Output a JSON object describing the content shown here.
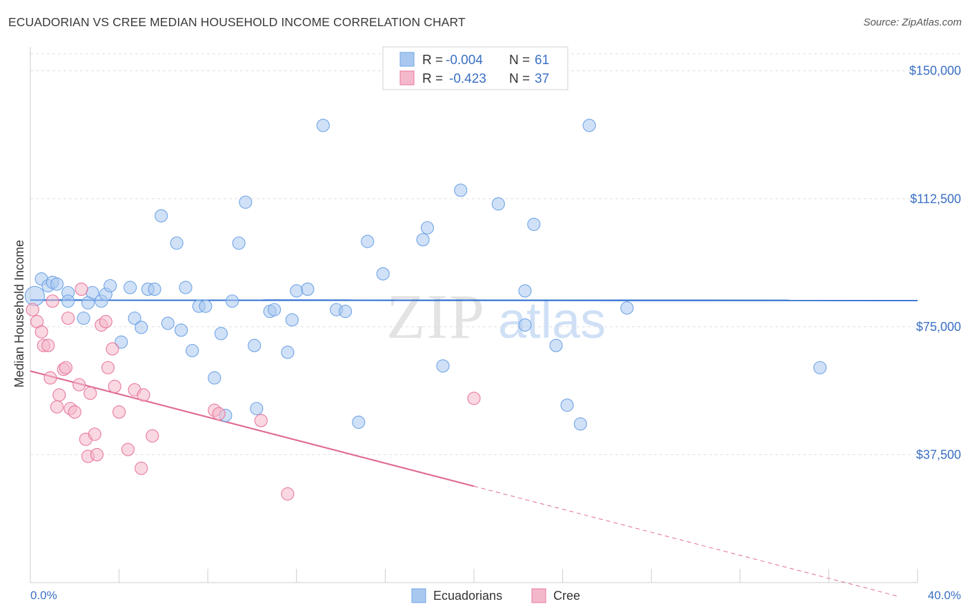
{
  "header": {
    "title": "ECUADORIAN VS CREE MEDIAN HOUSEHOLD INCOME CORRELATION CHART",
    "source": "Source: ZipAtlas.com"
  },
  "watermark": {
    "zip": "ZIP",
    "atlas": "atlas"
  },
  "legend": {
    "rows": [
      {
        "r_label": "R =",
        "r_value": "-0.004",
        "n_label": "N =",
        "n_value": "61",
        "color": "#a9c8f0"
      },
      {
        "r_label": "R =",
        "r_value": "-0.423",
        "n_label": "N =",
        "n_value": "37",
        "color": "#f4b8cb"
      }
    ]
  },
  "bottom_legend": {
    "ecuadorians": "Ecuadorians",
    "cree": "Cree"
  },
  "chart_data": {
    "type": "scatter",
    "title": "ECUADORIAN VS CREE MEDIAN HOUSEHOLD INCOME CORRELATION CHART",
    "xlabel": "",
    "ylabel": "Median Household Income",
    "xlim": [
      0,
      40
    ],
    "ylim": [
      0,
      155000
    ],
    "x_tick_labels": [
      "0.0%",
      "40.0%"
    ],
    "y_ticks": [
      37500,
      75000,
      112500,
      150000
    ],
    "y_tick_labels": [
      "$37,500",
      "$75,000",
      "$112,500",
      "$150,000"
    ],
    "grid": true,
    "legend_position": "top-center",
    "series": [
      {
        "name": "Ecuadorians",
        "color": "#6ea3e6",
        "fill": "#a9c8f0",
        "trend": {
          "x": [
            0,
            40
          ],
          "y": [
            82800,
            82700
          ],
          "dashed_from": null
        },
        "points": [
          [
            0.2,
            84000
          ],
          [
            0.5,
            89000
          ],
          [
            0.8,
            87000
          ],
          [
            1.0,
            88000
          ],
          [
            1.2,
            87500
          ],
          [
            1.7,
            85000
          ],
          [
            1.7,
            82500
          ],
          [
            2.4,
            77500
          ],
          [
            2.6,
            82000
          ],
          [
            2.8,
            85000
          ],
          [
            3.2,
            82500
          ],
          [
            3.4,
            84500
          ],
          [
            3.6,
            87000
          ],
          [
            4.1,
            70500
          ],
          [
            4.5,
            86500
          ],
          [
            4.7,
            77500
          ],
          [
            5.0,
            74800
          ],
          [
            5.3,
            86000
          ],
          [
            5.6,
            86000
          ],
          [
            5.9,
            107500
          ],
          [
            6.2,
            76000
          ],
          [
            6.6,
            99500
          ],
          [
            6.8,
            74000
          ],
          [
            7.0,
            86500
          ],
          [
            7.3,
            68000
          ],
          [
            7.6,
            81000
          ],
          [
            7.9,
            81000
          ],
          [
            8.3,
            60000
          ],
          [
            8.6,
            73000
          ],
          [
            8.8,
            49000
          ],
          [
            9.1,
            82500
          ],
          [
            9.4,
            99500
          ],
          [
            9.7,
            111500
          ],
          [
            10.1,
            69500
          ],
          [
            10.2,
            51000
          ],
          [
            10.8,
            79500
          ],
          [
            11.0,
            80000
          ],
          [
            11.6,
            67500
          ],
          [
            11.8,
            77000
          ],
          [
            12.0,
            85500
          ],
          [
            12.5,
            86000
          ],
          [
            13.2,
            134000
          ],
          [
            13.8,
            80000
          ],
          [
            14.2,
            79500
          ],
          [
            14.8,
            47000
          ],
          [
            15.2,
            100000
          ],
          [
            15.9,
            90500
          ],
          [
            17.7,
            100500
          ],
          [
            17.9,
            104000
          ],
          [
            18.6,
            63500
          ],
          [
            19.4,
            115000
          ],
          [
            21.1,
            111000
          ],
          [
            22.3,
            85500
          ],
          [
            22.3,
            75500
          ],
          [
            22.7,
            105000
          ],
          [
            23.7,
            69500
          ],
          [
            24.2,
            52000
          ],
          [
            24.8,
            46500
          ],
          [
            25.2,
            134000
          ],
          [
            26.9,
            80500
          ],
          [
            35.6,
            63000
          ]
        ]
      },
      {
        "name": "Cree",
        "color": "#e8779c",
        "fill": "#f4b8cb",
        "trend": {
          "x": [
            0,
            40
          ],
          "y": [
            62000,
            -5500
          ],
          "dashed_from": 20
        },
        "points": [
          [
            0.1,
            80000
          ],
          [
            0.3,
            76500
          ],
          [
            0.5,
            73500
          ],
          [
            0.6,
            69500
          ],
          [
            0.8,
            69500
          ],
          [
            0.9,
            60000
          ],
          [
            1.0,
            82500
          ],
          [
            1.2,
            51500
          ],
          [
            1.3,
            55000
          ],
          [
            1.5,
            62500
          ],
          [
            1.6,
            63000
          ],
          [
            1.7,
            77500
          ],
          [
            1.8,
            51000
          ],
          [
            2.0,
            50000
          ],
          [
            2.2,
            58000
          ],
          [
            2.3,
            86000
          ],
          [
            2.5,
            42000
          ],
          [
            2.6,
            37000
          ],
          [
            2.7,
            55500
          ],
          [
            2.9,
            43500
          ],
          [
            3.0,
            37500
          ],
          [
            3.2,
            75500
          ],
          [
            3.4,
            76500
          ],
          [
            3.5,
            63000
          ],
          [
            3.7,
            68500
          ],
          [
            3.8,
            57500
          ],
          [
            4.0,
            50000
          ],
          [
            4.4,
            39000
          ],
          [
            4.7,
            56500
          ],
          [
            5.0,
            33500
          ],
          [
            5.1,
            55000
          ],
          [
            5.5,
            43000
          ],
          [
            8.3,
            50500
          ],
          [
            8.5,
            49500
          ],
          [
            10.4,
            47500
          ],
          [
            11.6,
            26000
          ],
          [
            20.0,
            54000
          ]
        ]
      }
    ]
  }
}
